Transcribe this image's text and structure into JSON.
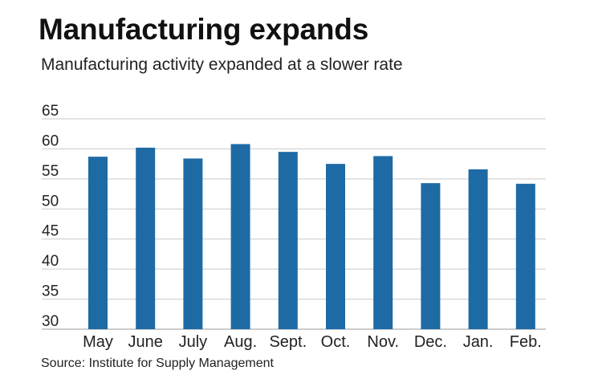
{
  "title": "Manufacturing expands",
  "subtitle": "Manufacturing activity expanded at a slower rate",
  "source": "Source: Institute for Supply Management",
  "colors": {
    "bar": "#1e6aa5",
    "grid": "#c9c9c9",
    "axis": "#9a9a9a",
    "text": "#222222"
  },
  "chart_data": {
    "type": "bar",
    "categories": [
      "May",
      "June",
      "July",
      "Aug.",
      "Sept.",
      "Oct.",
      "Nov.",
      "Dec.",
      "Jan.",
      "Feb."
    ],
    "values": [
      58.7,
      60.2,
      58.4,
      60.8,
      59.5,
      57.5,
      58.8,
      54.3,
      56.6,
      54.2
    ],
    "ylim": [
      30,
      65
    ],
    "yticks": [
      30,
      35,
      40,
      45,
      50,
      55,
      60,
      65
    ],
    "grid": true,
    "title": "Manufacturing expands",
    "xlabel": "",
    "ylabel": ""
  }
}
